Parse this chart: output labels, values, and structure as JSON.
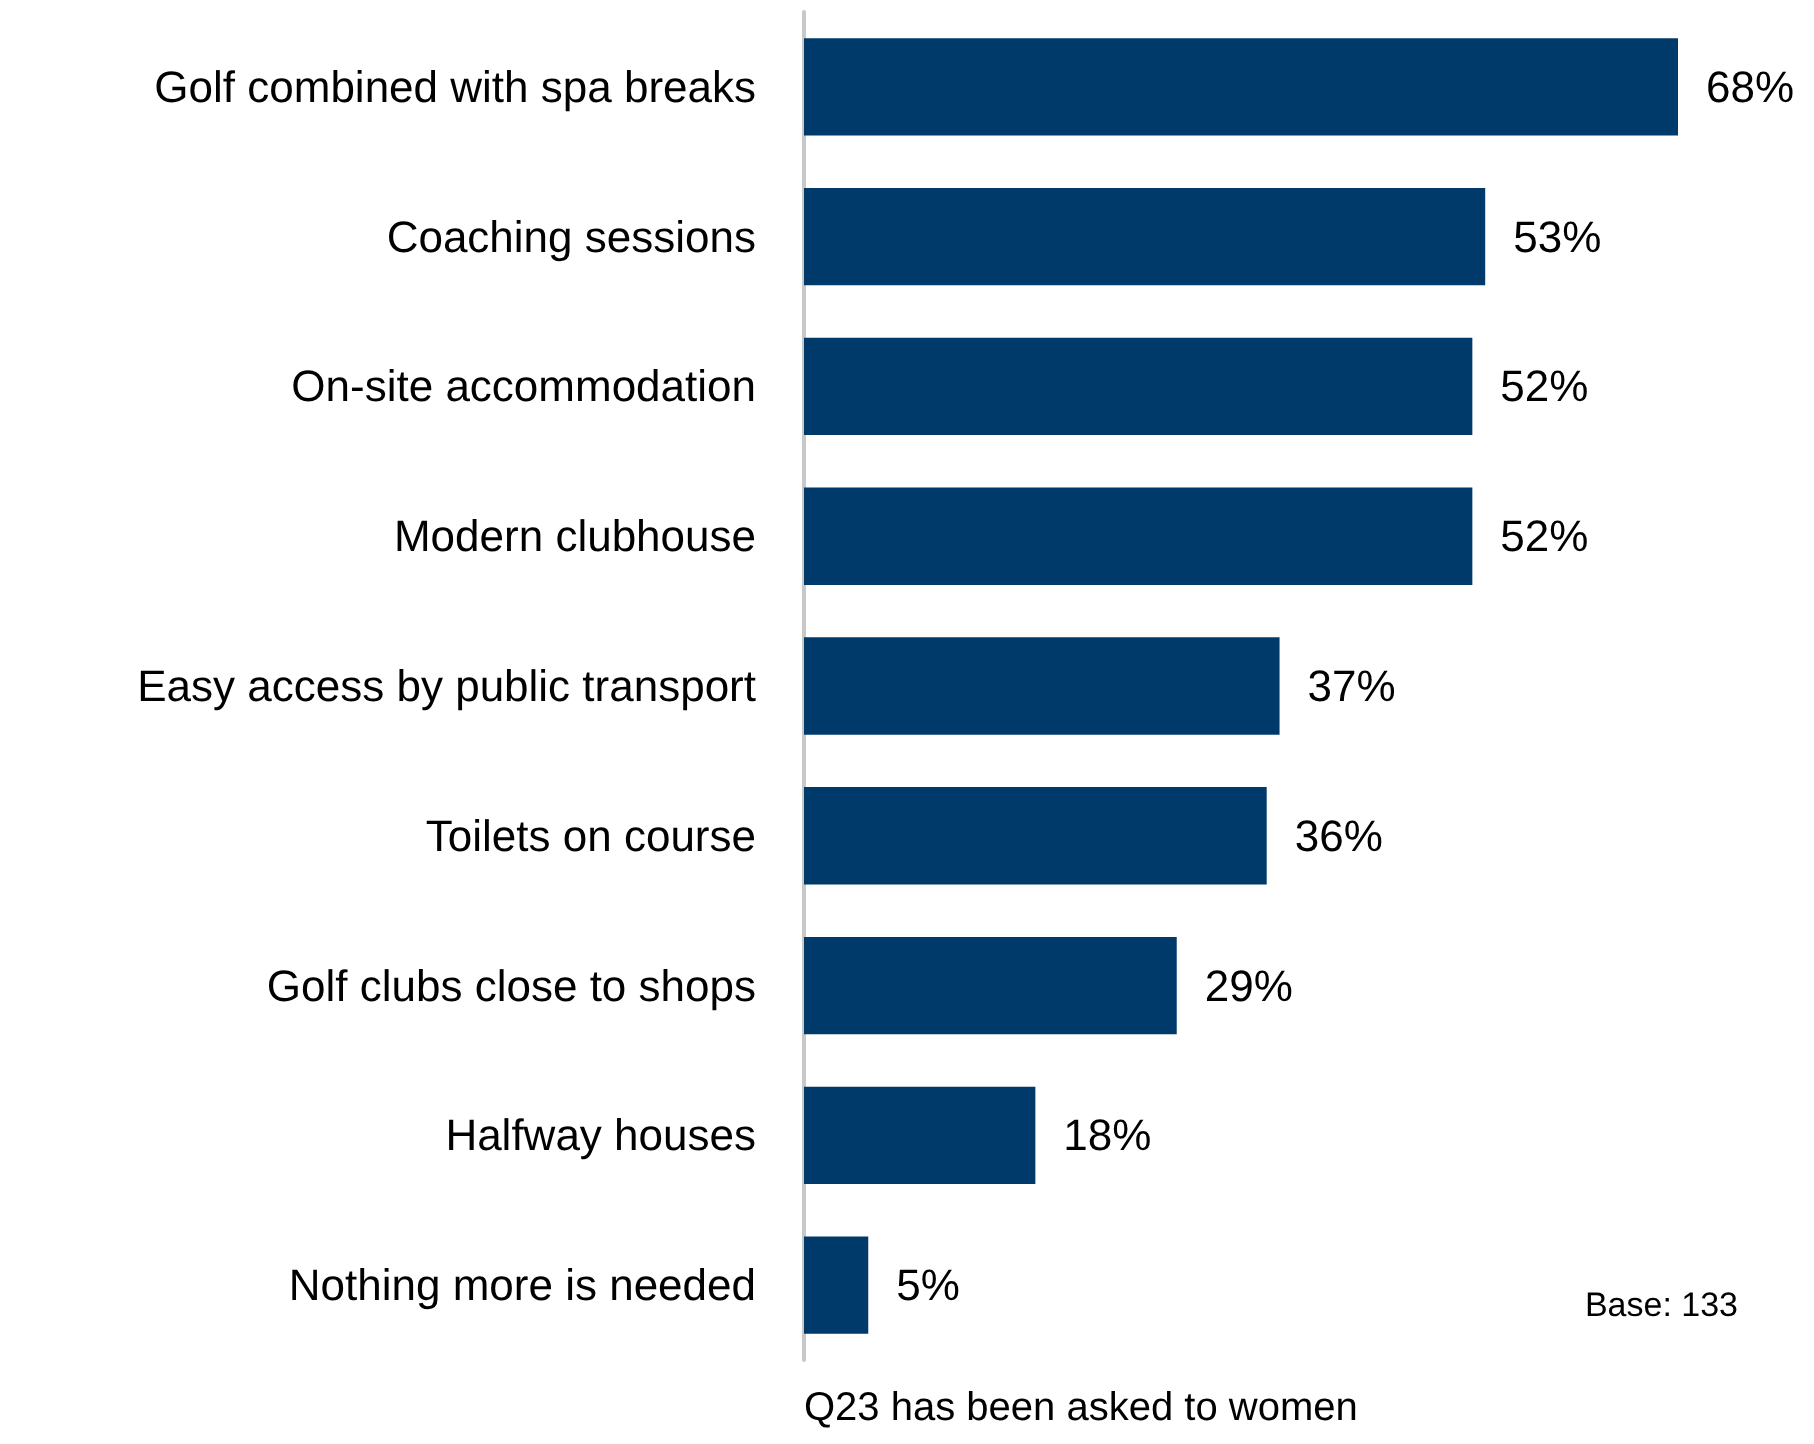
{
  "chart_data": {
    "type": "bar",
    "orientation": "horizontal",
    "categories": [
      "Golf combined with spa breaks",
      "Coaching sessions",
      "On-site accommodation",
      "Modern clubhouse",
      "Easy access by public transport",
      "Toilets on course",
      "Golf clubs close to shops",
      "Halfway houses",
      "Nothing more is needed"
    ],
    "values": [
      68,
      53,
      52,
      52,
      37,
      36,
      29,
      18,
      5
    ],
    "value_labels": [
      "68%",
      "53%",
      "52%",
      "52%",
      "37%",
      "36%",
      "29%",
      "18%",
      "5%"
    ],
    "color": "#003a6b",
    "tick_labels": "y",
    "annotations": [
      "Base: 133",
      "Q23 has been asked to women"
    ]
  }
}
